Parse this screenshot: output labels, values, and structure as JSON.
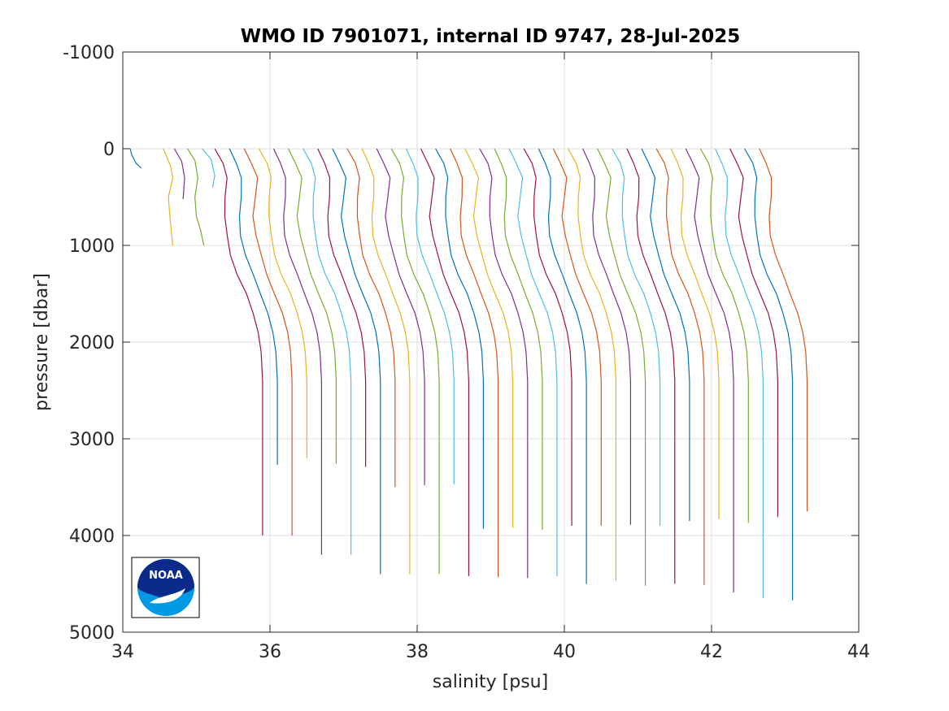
{
  "chart_data": {
    "type": "line",
    "title": "WMO ID 7901071, internal ID 9747, 28-Jul-2025",
    "xlabel": "salinity [psu]",
    "ylabel": "pressure [dbar]",
    "xlim": [
      34,
      44
    ],
    "ylim": [
      -1000,
      5000
    ],
    "y_reversed": true,
    "grid": true,
    "xticks": [
      "34",
      "36",
      "38",
      "40",
      "42",
      "44"
    ],
    "yticks": [
      "-1000",
      "0",
      "1000",
      "2000",
      "3000",
      "4000",
      "5000"
    ],
    "logo": "NOAA",
    "profile_shape": {
      "pressure": [
        0,
        150,
        300,
        500,
        700,
        900,
        1100,
        1300,
        1500,
        1700,
        1900,
        2100,
        2400,
        2700,
        3000,
        3300,
        3600,
        3900,
        4200,
        4500,
        4700
      ],
      "salinity_offset": [
        -0.65,
        -0.55,
        -0.48,
        -0.5,
        -0.52,
        -0.49,
        -0.43,
        -0.34,
        -0.23,
        -0.13,
        -0.06,
        -0.02,
        0.0,
        0.0,
        0.0,
        0.0,
        0.0,
        0.0,
        0.0,
        0.0,
        0.0
      ]
    },
    "shallow_profiles": [
      {
        "s0": 34.1,
        "s": [
          34.1,
          34.12,
          34.18,
          34.25
        ],
        "p": [
          0,
          60,
          150,
          200
        ],
        "color": "#0072bd"
      },
      {
        "s0": 34.55,
        "s": [
          34.55,
          34.65,
          34.68,
          34.62,
          34.64,
          34.66,
          34.68
        ],
        "p": [
          0,
          180,
          300,
          500,
          700,
          850,
          1000
        ],
        "color": "#edb120"
      },
      {
        "s0": 34.7,
        "s": [
          34.7,
          34.8,
          34.84,
          34.82
        ],
        "p": [
          0,
          130,
          300,
          520
        ],
        "color": "#7e2f8e"
      },
      {
        "s0": 34.88,
        "s": [
          34.88,
          34.98,
          35.02,
          34.98,
          35.0,
          35.06,
          35.1
        ],
        "p": [
          0,
          120,
          300,
          500,
          700,
          850,
          1000
        ],
        "color": "#77ac30"
      },
      {
        "s0": 35.08,
        "s": [
          35.08,
          35.2,
          35.25,
          35.22
        ],
        "p": [
          0,
          110,
          280,
          400
        ],
        "color": "#4dbeee"
      }
    ],
    "series": [
      {
        "deep_salinity": 35.9,
        "max_pressure": 4000,
        "color": "#a2142f"
      },
      {
        "deep_salinity": 36.1,
        "max_pressure": 3270,
        "color": "#0072bd"
      },
      {
        "deep_salinity": 36.3,
        "max_pressure": 4000,
        "color": "#d95319"
      },
      {
        "deep_salinity": 36.5,
        "max_pressure": 3200,
        "color": "#edb120"
      },
      {
        "deep_salinity": 36.7,
        "max_pressure": 4200,
        "color": "#7e2f8e"
      },
      {
        "deep_salinity": 36.9,
        "max_pressure": 3260,
        "color": "#77ac30"
      },
      {
        "deep_salinity": 37.1,
        "max_pressure": 4200,
        "color": "#4dbeee"
      },
      {
        "deep_salinity": 37.3,
        "max_pressure": 3290,
        "color": "#a2142f"
      },
      {
        "deep_salinity": 37.5,
        "max_pressure": 4400,
        "color": "#0072bd"
      },
      {
        "deep_salinity": 37.7,
        "max_pressure": 3500,
        "color": "#d95319"
      },
      {
        "deep_salinity": 37.9,
        "max_pressure": 4400,
        "color": "#edb120"
      },
      {
        "deep_salinity": 38.1,
        "max_pressure": 3480,
        "color": "#7e2f8e"
      },
      {
        "deep_salinity": 38.3,
        "max_pressure": 4400,
        "color": "#77ac30"
      },
      {
        "deep_salinity": 38.5,
        "max_pressure": 3470,
        "color": "#4dbeee"
      },
      {
        "deep_salinity": 38.7,
        "max_pressure": 4420,
        "color": "#a2142f"
      },
      {
        "deep_salinity": 38.9,
        "max_pressure": 3930,
        "color": "#0072bd"
      },
      {
        "deep_salinity": 39.1,
        "max_pressure": 4430,
        "color": "#d95319"
      },
      {
        "deep_salinity": 39.3,
        "max_pressure": 3920,
        "color": "#edb120"
      },
      {
        "deep_salinity": 39.5,
        "max_pressure": 4440,
        "color": "#7e2f8e"
      },
      {
        "deep_salinity": 39.7,
        "max_pressure": 3940,
        "color": "#77ac30"
      },
      {
        "deep_salinity": 39.9,
        "max_pressure": 4420,
        "color": "#4dbeee"
      },
      {
        "deep_salinity": 40.1,
        "max_pressure": 3900,
        "color": "#a2142f"
      },
      {
        "deep_salinity": 40.3,
        "max_pressure": 4500,
        "color": "#0072bd"
      },
      {
        "deep_salinity": 40.5,
        "max_pressure": 3900,
        "color": "#d95319"
      },
      {
        "deep_salinity": 40.7,
        "max_pressure": 4470,
        "color": "#edb120"
      },
      {
        "deep_salinity": 40.9,
        "max_pressure": 3890,
        "color": "#7e2f8e"
      },
      {
        "deep_salinity": 41.1,
        "max_pressure": 4520,
        "color": "#77ac30"
      },
      {
        "deep_salinity": 41.3,
        "max_pressure": 3900,
        "color": "#4dbeee"
      },
      {
        "deep_salinity": 41.5,
        "max_pressure": 4500,
        "color": "#a2142f"
      },
      {
        "deep_salinity": 41.7,
        "max_pressure": 3850,
        "color": "#0072bd"
      },
      {
        "deep_salinity": 41.9,
        "max_pressure": 4510,
        "color": "#d95319"
      },
      {
        "deep_salinity": 42.1,
        "max_pressure": 3830,
        "color": "#edb120"
      },
      {
        "deep_salinity": 42.3,
        "max_pressure": 4590,
        "color": "#7e2f8e"
      },
      {
        "deep_salinity": 42.5,
        "max_pressure": 3870,
        "color": "#77ac30"
      },
      {
        "deep_salinity": 42.7,
        "max_pressure": 4650,
        "color": "#4dbeee"
      },
      {
        "deep_salinity": 42.9,
        "max_pressure": 3810,
        "color": "#a2142f"
      },
      {
        "deep_salinity": 43.1,
        "max_pressure": 4670,
        "color": "#0072bd"
      },
      {
        "deep_salinity": 43.3,
        "max_pressure": 3750,
        "color": "#d95319"
      }
    ]
  }
}
